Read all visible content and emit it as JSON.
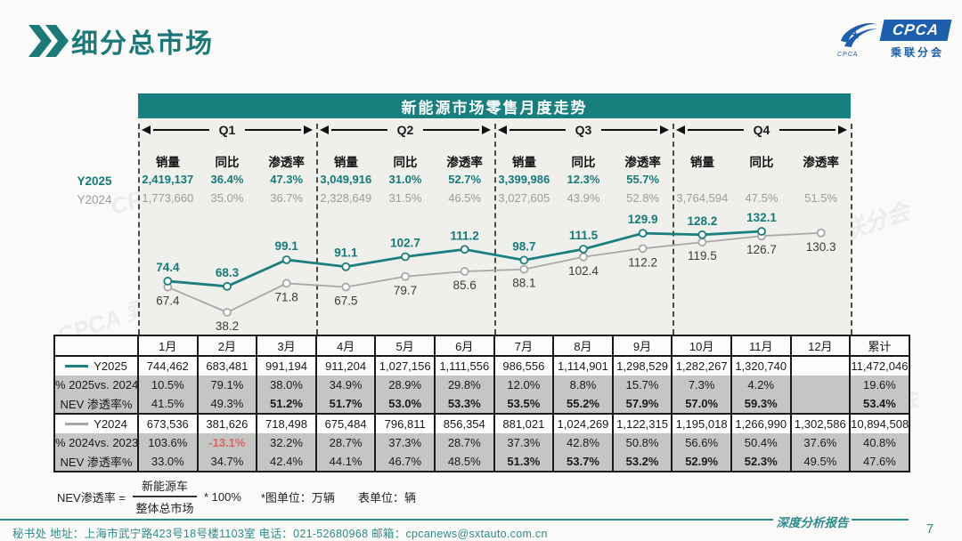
{
  "page": {
    "title": "细分总市场",
    "page_number": "7",
    "watermark": "CPCA 乘联分会",
    "footer": {
      "contact": "秘书处  地址：上海市武宁路423号18号楼1103室  电话：021-52680968  邮箱：cpcanews@sxtauto.com.cn",
      "report_label": "深度分析报告"
    },
    "logo": {
      "name": "CPCA",
      "sub": "乘联分会",
      "tiny": "CPCA"
    }
  },
  "colors": {
    "accent": "#157b7a",
    "bar_teal": "#17807e",
    "gray_text": "#9c9c9c",
    "red": "#e06363",
    "logo_blue": "#1d5fae"
  },
  "chart": {
    "title": "新能源市场零售月度走势",
    "col_headers": [
      "销量",
      "同比",
      "渗透率"
    ],
    "series_labels": {
      "y2025": "Y2025",
      "y2024": "Y2024"
    },
    "quarters": [
      {
        "label": "Q1",
        "y2025": [
          "2,419,137",
          "36.4%",
          "47.3%"
        ],
        "y2024": [
          "1,773,660",
          "35.0%",
          "36.7%"
        ]
      },
      {
        "label": "Q2",
        "y2025": [
          "3,049,916",
          "31.0%",
          "52.7%"
        ],
        "y2024": [
          "2,328,649",
          "31.5%",
          "46.5%"
        ]
      },
      {
        "label": "Q3",
        "y2025": [
          "3,399,986",
          "12.3%",
          "55.7%"
        ],
        "y2024": [
          "3,027,605",
          "43.9%",
          "52.8%"
        ]
      },
      {
        "label": "Q4",
        "y2025": [
          "",
          "",
          ""
        ],
        "y2024": [
          "3,764,594",
          "47.5%",
          "51.5%"
        ]
      }
    ]
  },
  "chart_data": {
    "type": "line",
    "title": "新能源市场零售月度走势",
    "unit": "万辆",
    "x": [
      "1月",
      "2月",
      "3月",
      "4月",
      "5月",
      "6月",
      "7月",
      "8月",
      "9月",
      "10月",
      "11月",
      "12月"
    ],
    "series": [
      {
        "name": "Y2025",
        "color": "#1b7f7d",
        "values": [
          74.4,
          68.3,
          99.1,
          91.1,
          102.7,
          111.2,
          98.7,
          111.5,
          129.9,
          128.2,
          132.1
        ]
      },
      {
        "name": "Y2024",
        "color": "#a8a8a8",
        "values": [
          67.4,
          38.2,
          71.8,
          67.5,
          79.7,
          85.6,
          88.1,
          102.4,
          112.2,
          119.5,
          126.7,
          130.3
        ]
      }
    ],
    "grid": false,
    "legend_position": "row-labels-left",
    "ylim": [
      30,
      140
    ]
  },
  "table": {
    "months": [
      "1月",
      "2月",
      "3月",
      "4月",
      "5月",
      "6月",
      "7月",
      "8月",
      "9月",
      "10月",
      "11月",
      "12月",
      "累计"
    ],
    "rows": [
      {
        "label": "Y2025",
        "legend": 0,
        "group_end": false,
        "white": true,
        "cells": [
          "744,462",
          "683,481",
          "991,194",
          "911,204",
          "1,027,156",
          "1,111,556",
          "986,556",
          "1,114,901",
          "1,298,529",
          "1,282,267",
          "1,320,740",
          "",
          "11,472,046"
        ],
        "bold_cells": [],
        "red_cells": []
      },
      {
        "label": "% 2025vs. 2024",
        "legend": null,
        "group_end": false,
        "white": false,
        "cells": [
          "10.5%",
          "79.1%",
          "38.0%",
          "34.9%",
          "28.9%",
          "29.8%",
          "12.0%",
          "8.8%",
          "15.7%",
          "7.3%",
          "4.2%",
          "",
          "19.6%"
        ],
        "bold_cells": [],
        "red_cells": []
      },
      {
        "label": "NEV 渗透率%",
        "legend": null,
        "group_end": true,
        "white": false,
        "cells": [
          "41.5%",
          "49.3%",
          "51.2%",
          "51.7%",
          "53.0%",
          "53.3%",
          "53.5%",
          "55.2%",
          "57.9%",
          "57.0%",
          "59.3%",
          "",
          "53.4%"
        ],
        "bold_cells": [
          2,
          3,
          4,
          5,
          6,
          7,
          8,
          9,
          10,
          12
        ],
        "red_cells": []
      },
      {
        "label": "Y2024",
        "legend": 1,
        "group_end": false,
        "white": true,
        "cells": [
          "673,536",
          "381,626",
          "718,498",
          "675,484",
          "796,811",
          "856,354",
          "881,021",
          "1,024,269",
          "1,122,315",
          "1,195,018",
          "1,266,990",
          "1,302,586",
          "10,894,508"
        ],
        "bold_cells": [],
        "red_cells": []
      },
      {
        "label": "% 2024vs. 2023",
        "legend": null,
        "group_end": false,
        "white": false,
        "cells": [
          "103.6%",
          "-13.1%",
          "32.2%",
          "28.7%",
          "37.3%",
          "28.7%",
          "37.3%",
          "42.8%",
          "50.8%",
          "56.6%",
          "50.4%",
          "37.6%",
          "40.8%"
        ],
        "bold_cells": [],
        "red_cells": [
          1
        ]
      },
      {
        "label": "NEV 渗透率%",
        "legend": null,
        "group_end": true,
        "white": false,
        "cells": [
          "33.0%",
          "34.7%",
          "42.4%",
          "44.1%",
          "46.7%",
          "48.5%",
          "51.3%",
          "53.7%",
          "53.2%",
          "52.9%",
          "52.3%",
          "49.5%",
          "47.6%"
        ],
        "bold_cells": [
          6,
          7,
          8,
          9,
          10
        ],
        "red_cells": []
      }
    ]
  },
  "notes": {
    "formula_lhs": "NEV渗透率 =",
    "numerator": "新能源车",
    "denominator": "整体总市场",
    "times": "* 100%",
    "unit_chart": "*图单位：万辆",
    "unit_table": "表单位：辆"
  }
}
